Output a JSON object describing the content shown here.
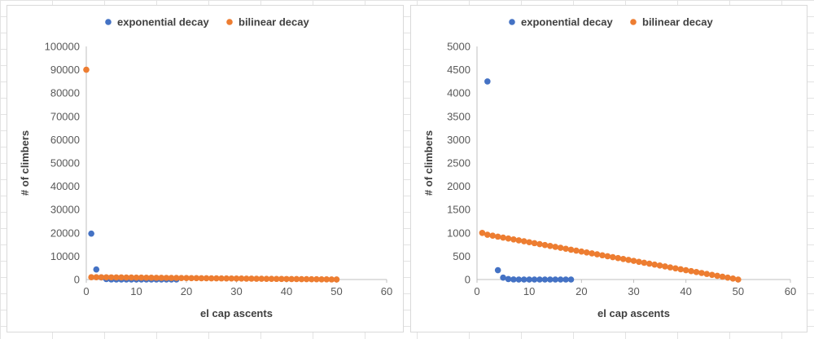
{
  "colors": {
    "exponential": "#4472c4",
    "bilinear": "#ed7d31",
    "axis": "#bfbfbf",
    "text": "#595959"
  },
  "chart_data": [
    {
      "type": "scatter",
      "title": "",
      "xlabel": "el cap ascents",
      "ylabel": "# of climbers",
      "xlim": [
        0,
        60
      ],
      "ylim": [
        0,
        100000
      ],
      "x_ticks": [
        "0",
        "10",
        "20",
        "30",
        "40",
        "50",
        "60"
      ],
      "y_ticks": [
        "0",
        "10000",
        "20000",
        "30000",
        "40000",
        "50000",
        "60000",
        "70000",
        "80000",
        "90000",
        "100000"
      ],
      "grid": false,
      "legend_position": "top",
      "series": [
        {
          "name": "exponential decay",
          "color": "#4472c4",
          "points": [
            [
              1,
              19700
            ],
            [
              2,
              4300
            ],
            [
              3,
              900
            ],
            [
              4,
              200
            ],
            [
              5,
              40
            ],
            [
              6,
              10
            ],
            [
              7,
              2
            ],
            [
              8,
              0
            ],
            [
              9,
              0
            ],
            [
              10,
              0
            ],
            [
              11,
              0
            ],
            [
              12,
              0
            ],
            [
              13,
              0
            ],
            [
              14,
              0
            ],
            [
              15,
              0
            ],
            [
              16,
              0
            ],
            [
              17,
              0
            ],
            [
              18,
              0
            ]
          ]
        },
        {
          "name": "bilinear decay",
          "color": "#ed7d31",
          "points": [
            [
              0,
              90000
            ],
            [
              1,
              1000
            ],
            [
              2,
              980
            ],
            [
              3,
              960
            ],
            [
              4,
              940
            ],
            [
              5,
              920
            ],
            [
              6,
              900
            ],
            [
              7,
              880
            ],
            [
              8,
              860
            ],
            [
              9,
              840
            ],
            [
              10,
              820
            ],
            [
              11,
              800
            ],
            [
              12,
              780
            ],
            [
              13,
              760
            ],
            [
              14,
              740
            ],
            [
              15,
              720
            ],
            [
              16,
              700
            ],
            [
              17,
              680
            ],
            [
              18,
              660
            ],
            [
              19,
              640
            ],
            [
              20,
              620
            ],
            [
              21,
              600
            ],
            [
              22,
              580
            ],
            [
              23,
              560
            ],
            [
              24,
              540
            ],
            [
              25,
              520
            ],
            [
              26,
              500
            ],
            [
              27,
              480
            ],
            [
              28,
              460
            ],
            [
              29,
              440
            ],
            [
              30,
              420
            ],
            [
              31,
              400
            ],
            [
              32,
              380
            ],
            [
              33,
              360
            ],
            [
              34,
              340
            ],
            [
              35,
              320
            ],
            [
              36,
              300
            ],
            [
              37,
              280
            ],
            [
              38,
              260
            ],
            [
              39,
              240
            ],
            [
              40,
              220
            ],
            [
              41,
              200
            ],
            [
              42,
              180
            ],
            [
              43,
              160
            ],
            [
              44,
              140
            ],
            [
              45,
              120
            ],
            [
              46,
              100
            ],
            [
              47,
              80
            ],
            [
              48,
              60
            ],
            [
              49,
              40
            ],
            [
              50,
              20
            ]
          ]
        }
      ]
    },
    {
      "type": "scatter",
      "title": "",
      "xlabel": "el cap ascents",
      "ylabel": "# of climbers",
      "xlim": [
        0,
        60
      ],
      "ylim": [
        0,
        5000
      ],
      "x_ticks": [
        "0",
        "10",
        "20",
        "30",
        "40",
        "50",
        "60"
      ],
      "y_ticks": [
        "0",
        "500",
        "1000",
        "1500",
        "2000",
        "2500",
        "3000",
        "3500",
        "4000",
        "4500",
        "5000"
      ],
      "grid": false,
      "legend_position": "top",
      "series": [
        {
          "name": "exponential decay",
          "color": "#4472c4",
          "points": [
            [
              2,
              4250
            ],
            [
              4,
              200
            ],
            [
              5,
              40
            ],
            [
              6,
              10
            ],
            [
              7,
              2
            ],
            [
              8,
              0
            ],
            [
              9,
              0
            ],
            [
              10,
              0
            ],
            [
              11,
              0
            ],
            [
              12,
              0
            ],
            [
              13,
              0
            ],
            [
              14,
              0
            ],
            [
              15,
              0
            ],
            [
              16,
              0
            ],
            [
              17,
              0
            ],
            [
              18,
              0
            ]
          ]
        },
        {
          "name": "bilinear decay",
          "color": "#ed7d31",
          "points": [
            [
              1,
              1000
            ],
            [
              2,
              960
            ],
            [
              3,
              940
            ],
            [
              4,
              920
            ],
            [
              5,
              900
            ],
            [
              6,
              880
            ],
            [
              7,
              860
            ],
            [
              8,
              840
            ],
            [
              9,
              820
            ],
            [
              10,
              800
            ],
            [
              11,
              780
            ],
            [
              12,
              760
            ],
            [
              13,
              740
            ],
            [
              14,
              720
            ],
            [
              15,
              700
            ],
            [
              16,
              680
            ],
            [
              17,
              660
            ],
            [
              18,
              640
            ],
            [
              19,
              620
            ],
            [
              20,
              600
            ],
            [
              21,
              580
            ],
            [
              22,
              560
            ],
            [
              23,
              540
            ],
            [
              24,
              520
            ],
            [
              25,
              500
            ],
            [
              26,
              480
            ],
            [
              27,
              460
            ],
            [
              28,
              440
            ],
            [
              29,
              420
            ],
            [
              30,
              400
            ],
            [
              31,
              380
            ],
            [
              32,
              360
            ],
            [
              33,
              340
            ],
            [
              34,
              320
            ],
            [
              35,
              300
            ],
            [
              36,
              280
            ],
            [
              37,
              260
            ],
            [
              38,
              240
            ],
            [
              39,
              220
            ],
            [
              40,
              200
            ],
            [
              41,
              180
            ],
            [
              42,
              160
            ],
            [
              43,
              140
            ],
            [
              44,
              120
            ],
            [
              45,
              100
            ],
            [
              46,
              80
            ],
            [
              47,
              60
            ],
            [
              48,
              40
            ],
            [
              49,
              20
            ],
            [
              50,
              0
            ]
          ]
        }
      ]
    }
  ]
}
